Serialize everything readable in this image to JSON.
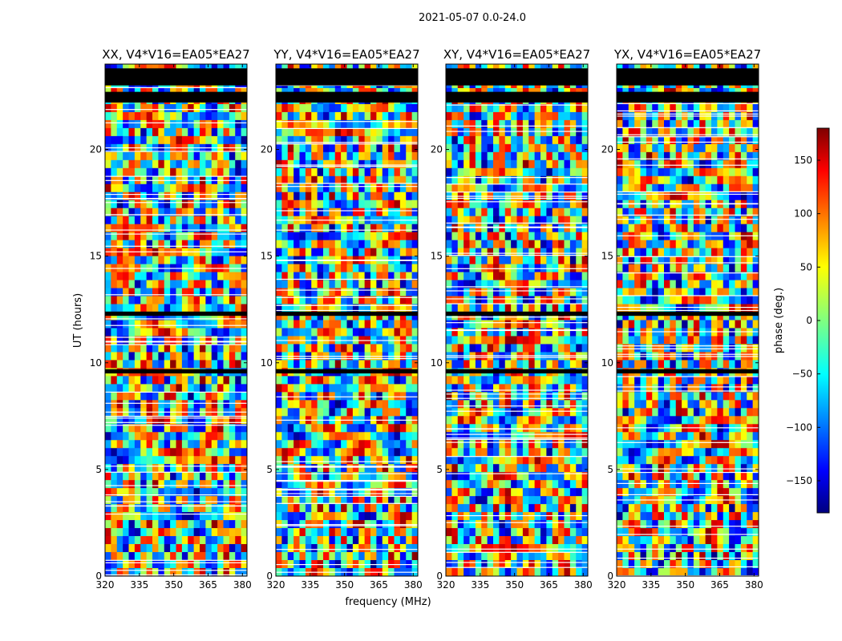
{
  "figure": {
    "suptitle": "2021-05-07 0.0-24.0",
    "xlabel": "frequency (MHz)",
    "ylabel": "UT (hours)",
    "colorbar_label": "phase (deg.)",
    "colorbar_ticks": [
      "150",
      "100",
      "50",
      "0",
      "−50",
      "−100",
      "−150"
    ]
  },
  "chart_data": [
    {
      "type": "heatmap",
      "title": "XX, V4*V16=EA05*EA27",
      "xlabel": "",
      "ylabel": "UT (hours)",
      "xlim": [
        320,
        382
      ],
      "ylim": [
        0,
        24
      ],
      "xticks": [
        320,
        335,
        350,
        365,
        380
      ],
      "xtick_labels": [
        "320",
        "335",
        "350",
        "365",
        "380"
      ],
      "yticks": [
        0,
        5,
        10,
        15,
        20
      ],
      "ytick_labels": [
        "0",
        "5",
        "10",
        "15",
        "20"
      ],
      "colorbar_range": [
        -180,
        180
      ],
      "colormap": "jet",
      "flagged_hours": [
        [
          23.0,
          23.8
        ],
        [
          22.2,
          22.7
        ],
        [
          12.2,
          12.4
        ],
        [
          9.5,
          9.7
        ]
      ]
    },
    {
      "type": "heatmap",
      "title": "YY, V4*V16=EA05*EA27",
      "xlabel": "frequency (MHz)",
      "ylabel": "",
      "xlim": [
        320,
        382
      ],
      "ylim": [
        0,
        24
      ],
      "xticks": [
        320,
        335,
        350,
        365,
        380
      ],
      "xtick_labels": [
        "320",
        "335",
        "350",
        "365",
        "380"
      ],
      "yticks": [
        0,
        5,
        10,
        15,
        20
      ],
      "ytick_labels": [
        "0",
        "5",
        "10",
        "15",
        "20"
      ],
      "colorbar_range": [
        -180,
        180
      ],
      "colormap": "jet",
      "flagged_hours": [
        [
          23.0,
          23.8
        ],
        [
          22.2,
          22.7
        ],
        [
          12.2,
          12.4
        ],
        [
          9.5,
          9.7
        ]
      ]
    },
    {
      "type": "heatmap",
      "title": "XY, V4*V16=EA05*EA27",
      "xlabel": "",
      "ylabel": "",
      "xlim": [
        320,
        382
      ],
      "ylim": [
        0,
        24
      ],
      "xticks": [
        320,
        335,
        350,
        365,
        380
      ],
      "xtick_labels": [
        "320",
        "335",
        "350",
        "365",
        "380"
      ],
      "yticks": [
        0,
        5,
        10,
        15,
        20
      ],
      "ytick_labels": [
        "0",
        "5",
        "10",
        "15",
        "20"
      ],
      "colorbar_range": [
        -180,
        180
      ],
      "colormap": "jet",
      "flagged_hours": [
        [
          23.0,
          23.8
        ],
        [
          22.2,
          22.7
        ],
        [
          12.2,
          12.4
        ],
        [
          9.5,
          9.7
        ]
      ]
    },
    {
      "type": "heatmap",
      "title": "YX, V4*V16=EA05*EA27",
      "xlabel": "",
      "ylabel": "",
      "xlim": [
        320,
        382
      ],
      "ylim": [
        0,
        24
      ],
      "xticks": [
        320,
        335,
        350,
        365,
        380
      ],
      "xtick_labels": [
        "320",
        "335",
        "350",
        "365",
        "380"
      ],
      "yticks": [
        0,
        5,
        10,
        15,
        20
      ],
      "ytick_labels": [
        "0",
        "5",
        "10",
        "15",
        "20"
      ],
      "colorbar_range": [
        -180,
        180
      ],
      "colormap": "jet",
      "flagged_hours": [
        [
          23.0,
          23.8
        ],
        [
          22.2,
          22.7
        ],
        [
          12.2,
          12.4
        ],
        [
          9.5,
          9.7
        ]
      ]
    }
  ]
}
